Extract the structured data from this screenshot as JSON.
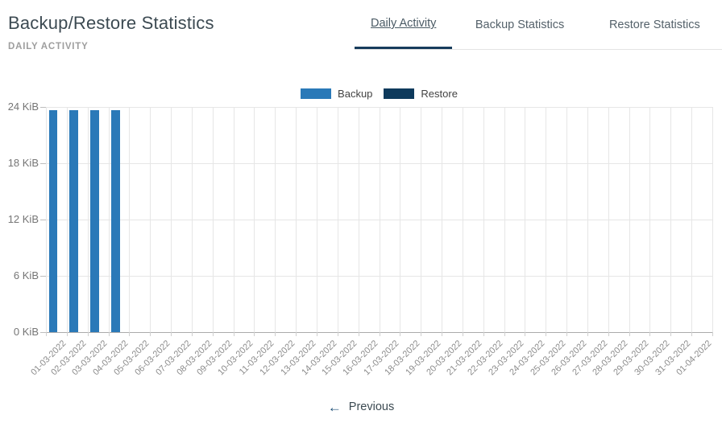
{
  "header": {
    "title": "Backup/Restore Statistics",
    "subtitle": "DAILY ACTIVITY"
  },
  "tabs": [
    {
      "label": "Daily Activity",
      "active": true
    },
    {
      "label": "Backup Statistics",
      "active": false
    },
    {
      "label": "Restore Statistics",
      "active": false
    }
  ],
  "legend": [
    {
      "label": "Backup",
      "color": "#2a79b8"
    },
    {
      "label": "Restore",
      "color": "#0e3a5c"
    }
  ],
  "colors": {
    "accent_navy": "#173c5c",
    "bar_blue": "#2a79b8",
    "restore_navy": "#0e3a5c",
    "gridline": "#e6e6e6",
    "axis_text": "#757575"
  },
  "chart_data": {
    "type": "bar",
    "title": "Daily Activity",
    "xlabel": "",
    "ylabel": "",
    "y_unit": "KiB",
    "ylim": [
      0,
      24
    ],
    "y_ticks": [
      {
        "label": "24 KiB",
        "value": 24
      },
      {
        "label": "18 KiB",
        "value": 18
      },
      {
        "label": "12 KiB",
        "value": 12
      },
      {
        "label": "6 KiB",
        "value": 6
      },
      {
        "label": "0 KiB",
        "value": 0
      }
    ],
    "grid": true,
    "legend_position": "top",
    "categories": [
      "01-03-2022",
      "02-03-2022",
      "03-03-2022",
      "04-03-2022",
      "05-03-2022",
      "06-03-2022",
      "07-03-2022",
      "08-03-2022",
      "09-03-2022",
      "10-03-2022",
      "11-03-2022",
      "12-03-2022",
      "13-03-2022",
      "14-03-2022",
      "15-03-2022",
      "16-03-2022",
      "17-03-2022",
      "18-03-2022",
      "19-03-2022",
      "20-03-2022",
      "21-03-2022",
      "22-03-2022",
      "23-03-2022",
      "24-03-2022",
      "25-03-2022",
      "26-03-2022",
      "27-03-2022",
      "28-03-2022",
      "29-03-2022",
      "30-03-2022",
      "31-03-2022",
      "01-04-2022"
    ],
    "series": [
      {
        "name": "Backup",
        "color": "#2a79b8",
        "values": [
          23.7,
          23.7,
          23.7,
          23.7,
          0,
          0,
          0,
          0,
          0,
          0,
          0,
          0,
          0,
          0,
          0,
          0,
          0,
          0,
          0,
          0,
          0,
          0,
          0,
          0,
          0,
          0,
          0,
          0,
          0,
          0,
          0,
          0
        ]
      },
      {
        "name": "Restore",
        "color": "#0e3a5c",
        "values": [
          0,
          0,
          0,
          0,
          0,
          0,
          0,
          0,
          0,
          0,
          0,
          0,
          0,
          0,
          0,
          0,
          0,
          0,
          0,
          0,
          0,
          0,
          0,
          0,
          0,
          0,
          0,
          0,
          0,
          0,
          0,
          0
        ]
      }
    ]
  },
  "footer": {
    "previous_icon": "←",
    "previous_label": "Previous"
  }
}
